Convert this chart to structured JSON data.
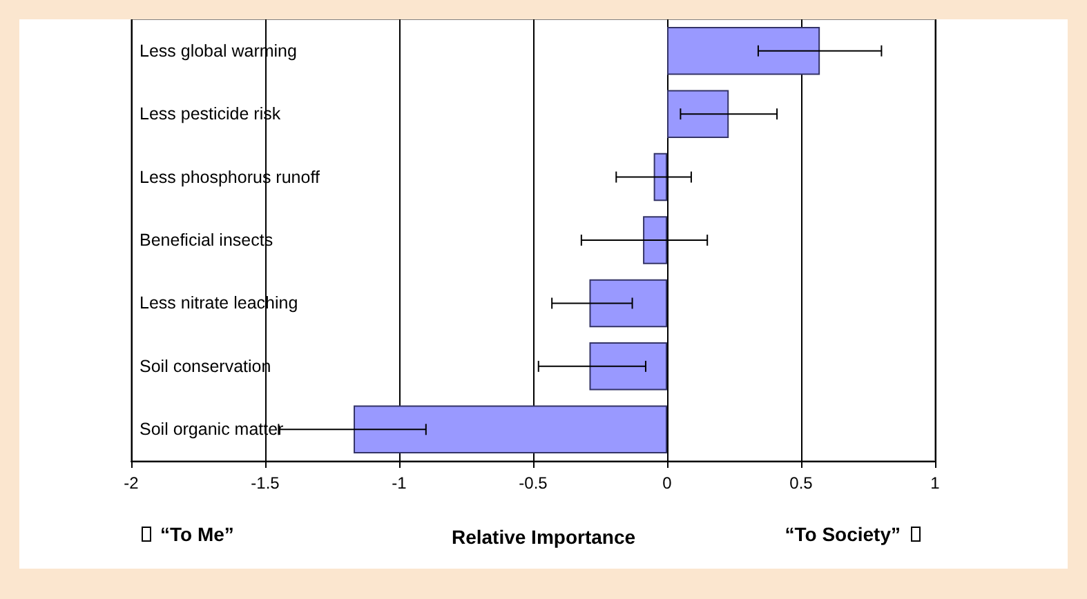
{
  "chart_data": {
    "type": "bar",
    "orientation": "horizontal",
    "categories": [
      "Less global warming",
      "Less pesticide risk",
      "Less phosphorus runoff",
      "Beneficial insects",
      "Less nitrate leaching",
      "Soil conservation",
      "Soil organic matter"
    ],
    "values": [
      0.57,
      0.23,
      -0.05,
      -0.09,
      -0.29,
      -0.29,
      -1.17
    ],
    "errors": [
      [
        0.34,
        0.8
      ],
      [
        0.05,
        0.41
      ],
      [
        -0.19,
        0.09
      ],
      [
        -0.32,
        0.15
      ],
      [
        -0.43,
        -0.13
      ],
      [
        -0.48,
        -0.08
      ],
      [
        -1.45,
        -0.9
      ]
    ],
    "color": "#9999ff",
    "xlim": [
      -2,
      1
    ],
    "xticks": [
      -2,
      -1.5,
      -1,
      -0.5,
      0,
      0.5,
      1
    ],
    "xlabel": "Relative Importance",
    "annotations": [
      "“To Me”",
      "“To Society”"
    ],
    "grid": "x"
  }
}
